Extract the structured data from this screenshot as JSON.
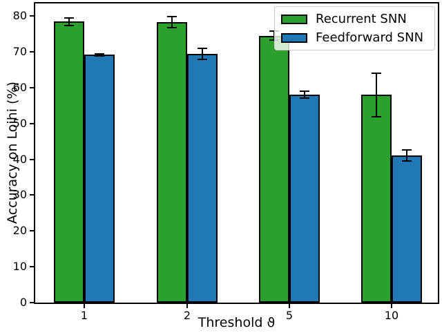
{
  "chart_data": {
    "type": "bar",
    "title": "",
    "xlabel": "Threshold ϑ",
    "ylabel": "Accuracy on Loihi (%)",
    "categories": [
      "1",
      "2",
      "5",
      "10"
    ],
    "series": [
      {
        "name": "Recurrent SNN",
        "color": "#2ca02c",
        "values": [
          78.4,
          78.3,
          74.5,
          58.0
        ],
        "errors": [
          1.0,
          1.5,
          1.2,
          6.1
        ]
      },
      {
        "name": "Feedforward SNN",
        "color": "#1f77b4",
        "values": [
          69.2,
          69.4,
          58.0,
          41.1
        ],
        "errors": [
          0.3,
          1.5,
          1.0,
          1.5
        ]
      }
    ],
    "ylim": [
      0,
      83.5
    ],
    "yticks": [
      0,
      10,
      20,
      30,
      40,
      50,
      60,
      70,
      80
    ],
    "grid": false,
    "legend_position": "upper right",
    "error_bars": true,
    "bar_edge_color": "#000000",
    "error_bar_color": "#000000"
  }
}
